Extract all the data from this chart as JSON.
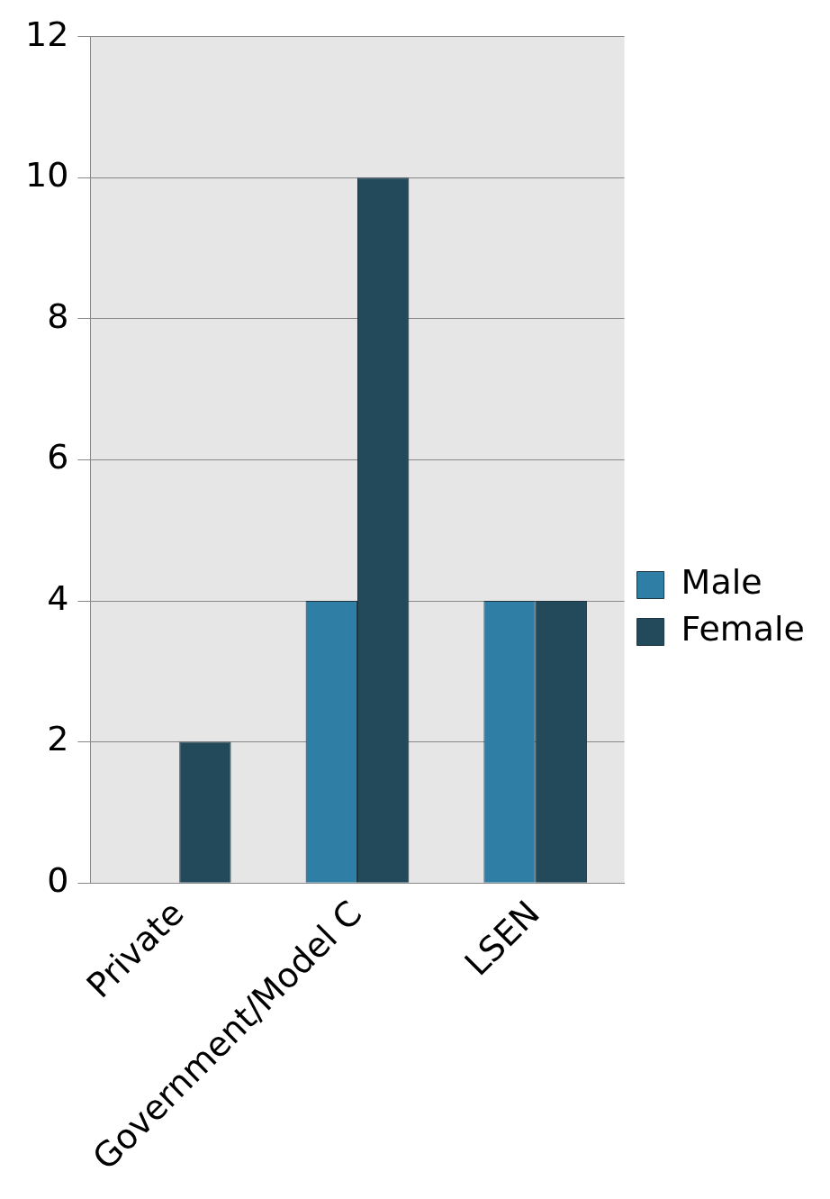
{
  "chart_data": {
    "type": "bar",
    "categories": [
      "Private",
      "Government/Model C",
      "LSEN"
    ],
    "series": [
      {
        "name": "Male",
        "color": "#2e7ea6",
        "values": [
          0,
          4,
          4
        ]
      },
      {
        "name": "Female",
        "color": "#234a5a",
        "values": [
          2,
          10,
          4
        ]
      }
    ],
    "ylim": [
      0,
      12
    ],
    "yticks": [
      0,
      2,
      4,
      6,
      8,
      10,
      12
    ],
    "grid": "y",
    "legend": "right"
  }
}
